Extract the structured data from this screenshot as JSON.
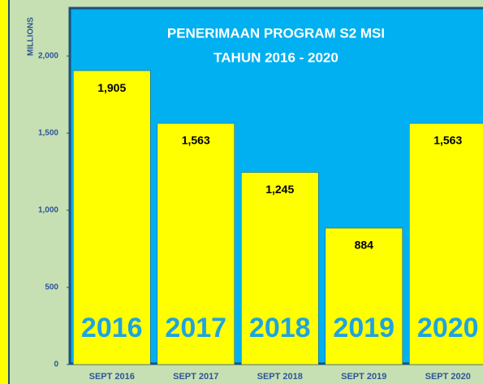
{
  "chart_data": {
    "type": "bar",
    "title": "PENERIMAAN PROGRAM S2 MSI",
    "subtitle": "TAHUN 2016 - 2020",
    "y_label": "MILLIONS",
    "categories": [
      "SEPT 2016",
      "SEPT 2017",
      "SEPT 2018",
      "SEPT 2019",
      "SEPT 2020"
    ],
    "bar_labels": [
      "2016",
      "2017",
      "2018",
      "2019",
      "2020"
    ],
    "values": [
      1905,
      1563,
      1245,
      884,
      1563
    ],
    "value_labels": [
      "1,905",
      "1,563",
      "1,245",
      "884",
      "1,563"
    ],
    "color": "#ffff00",
    "ylim": [
      0,
      2300
    ],
    "yticks": [
      0,
      500,
      {
        "value": 1000,
        "label": "1,000"
      },
      {
        "value": 1500,
        "label": "1,500"
      },
      {
        "value": 2000,
        "label": "2,000"
      }
    ],
    "grid": false
  }
}
